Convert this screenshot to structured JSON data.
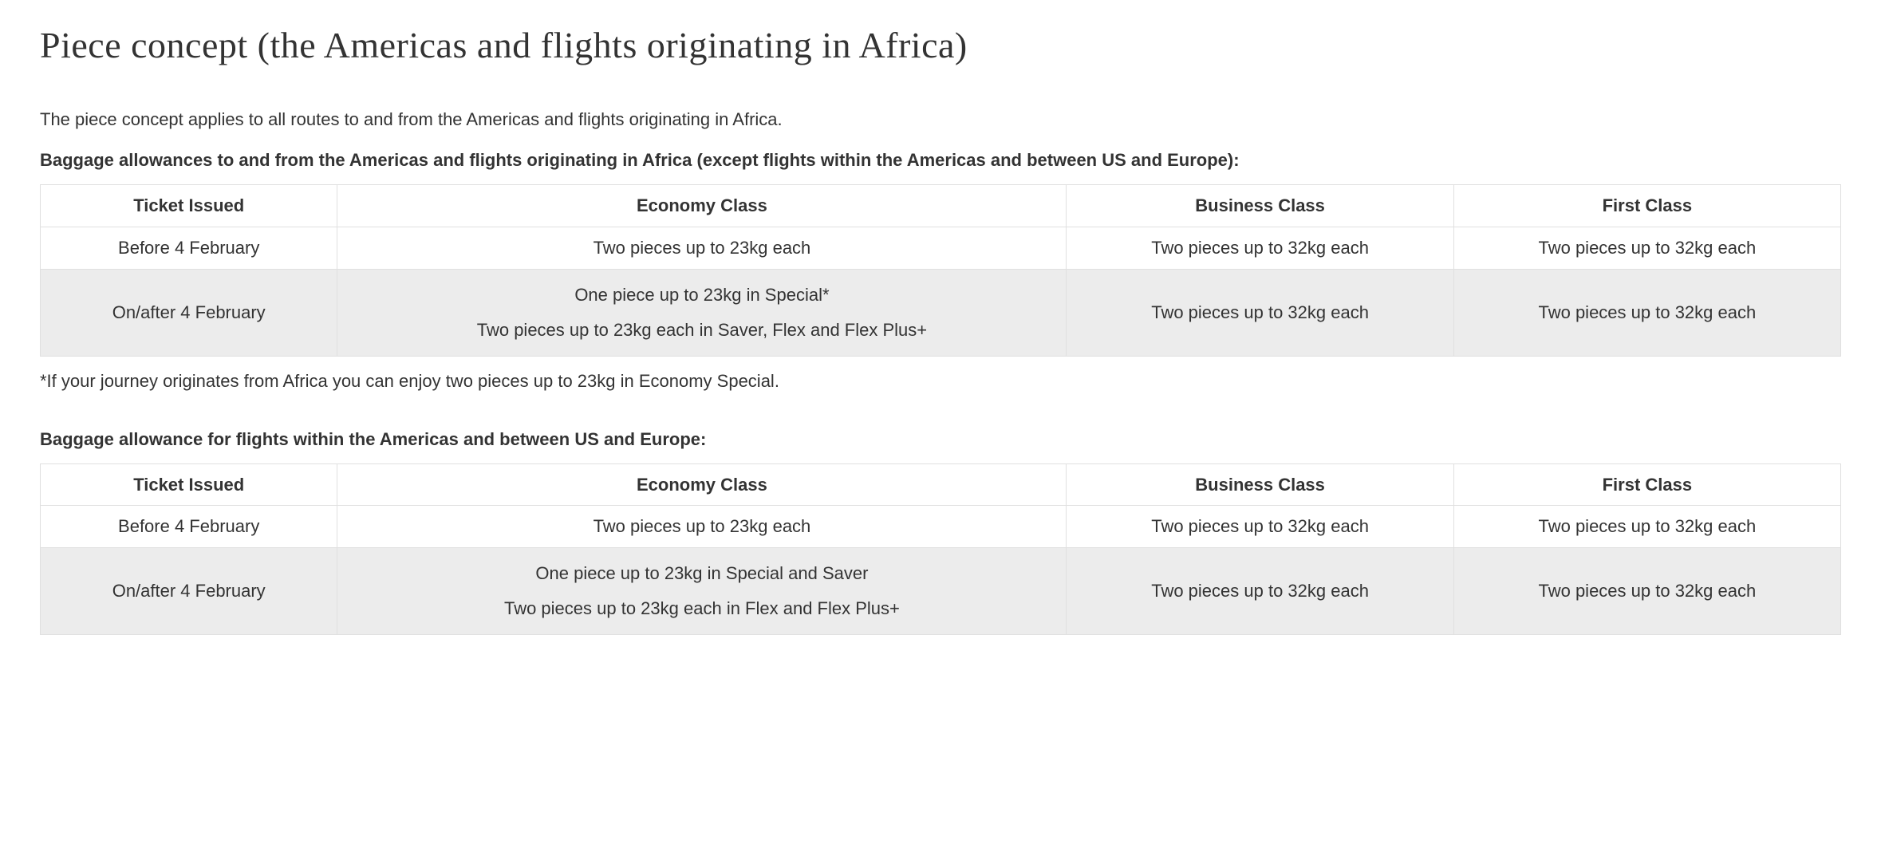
{
  "title": "Piece concept (the Americas and flights originating in Africa)",
  "intro": "The piece concept applies to all routes to and from the Americas and flights originating in Africa.",
  "section1": {
    "caption": "Baggage allowances to and from the Americas and flights originating in Africa (except flights within the Americas and between US and Europe):",
    "columns": [
      "Ticket Issued",
      "Economy Class",
      "Business Class",
      "First Class"
    ],
    "rows": {
      "r0": {
        "ticket": "Before 4 February",
        "economy": "Two pieces up to 23kg each",
        "business": "Two pieces up to 32kg each",
        "first": "Two pieces up to 32kg each"
      },
      "r1": {
        "ticket": "On/after 4 February",
        "economy_line1": "One piece up to 23kg in Special*",
        "economy_line2": "Two pieces up to 23kg each in Saver, Flex and Flex Plus+",
        "business": "Two pieces up to 32kg each",
        "first": "Two pieces up to 32kg each"
      }
    },
    "footnote": "*If your journey originates from Africa you can enjoy two pieces up to 23kg in Economy Special."
  },
  "section2": {
    "caption": "Baggage allowance for flights within the Americas and between US and Europe:",
    "columns": [
      "Ticket Issued",
      "Economy Class",
      "Business Class",
      "First Class"
    ],
    "rows": {
      "r0": {
        "ticket": "Before 4 February",
        "economy": "Two pieces up to 23kg each",
        "business": "Two pieces up to 32kg each",
        "first": "Two pieces up to 32kg each"
      },
      "r1": {
        "ticket": "On/after 4 February",
        "economy_line1": "One piece up to 23kg in Special and Saver",
        "economy_line2": "Two pieces up to 23kg each in Flex and Flex Plus+",
        "business": "Two pieces up to 32kg each",
        "first": "Two pieces up to 32kg each"
      }
    }
  }
}
